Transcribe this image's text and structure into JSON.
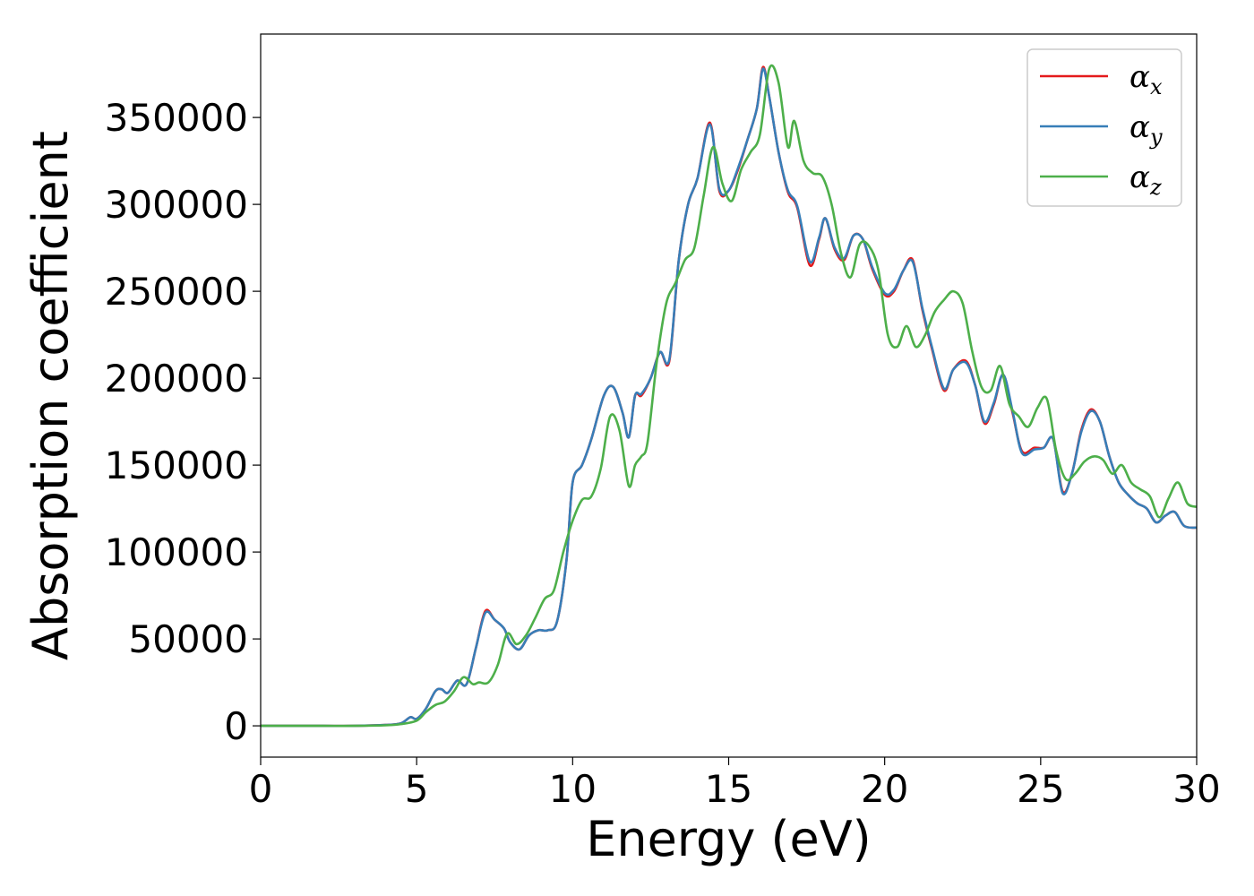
{
  "chart_data": {
    "type": "line",
    "xlabel": "Energy (eV)",
    "ylabel": "Absorption coefficient",
    "xlim": [
      0,
      30
    ],
    "ylim": [
      -18000,
      398000
    ],
    "xticks": [
      0,
      5,
      10,
      15,
      20,
      25,
      30
    ],
    "yticks": [
      0,
      50000,
      100000,
      150000,
      200000,
      250000,
      300000,
      350000
    ],
    "grid": false,
    "legend_position": "top-right",
    "series": [
      {
        "name": "αx",
        "label_base": "α",
        "label_sub": "x",
        "color": "#e41a1c",
        "x": [
          0,
          1,
          2,
          3,
          4,
          4.5,
          4.8,
          5.0,
          5.3,
          5.6,
          5.8,
          6.0,
          6.3,
          6.6,
          6.9,
          7.2,
          7.5,
          7.8,
          8.0,
          8.3,
          8.6,
          8.9,
          9.2,
          9.5,
          9.8,
          10.0,
          10.3,
          10.6,
          11.0,
          11.3,
          11.6,
          11.8,
          12.0,
          12.2,
          12.5,
          12.8,
          13.1,
          13.4,
          13.7,
          14.0,
          14.4,
          14.7,
          15.0,
          15.3,
          15.6,
          15.9,
          16.1,
          16.3,
          16.6,
          16.9,
          17.2,
          17.6,
          17.9,
          18.1,
          18.4,
          18.7,
          19.0,
          19.3,
          19.6,
          20.0,
          20.3,
          20.6,
          20.9,
          21.2,
          21.5,
          21.9,
          22.2,
          22.6,
          22.9,
          23.2,
          23.5,
          23.8,
          24.1,
          24.4,
          24.8,
          25.1,
          25.4,
          25.7,
          26.0,
          26.3,
          26.6,
          26.9,
          27.2,
          27.5,
          27.8,
          28.1,
          28.4,
          28.7,
          29.0,
          29.3,
          29.6,
          30.0
        ],
        "y": [
          0,
          0,
          0,
          0,
          500,
          1500,
          5000,
          4000,
          10000,
          20000,
          21000,
          19000,
          26000,
          24000,
          45000,
          66000,
          61000,
          56000,
          48000,
          44000,
          52000,
          55000,
          55000,
          60000,
          95000,
          140000,
          150000,
          165000,
          190000,
          195000,
          180000,
          166000,
          190000,
          190000,
          200000,
          215000,
          210000,
          268000,
          300000,
          315000,
          347000,
          308000,
          308000,
          320000,
          337000,
          355000,
          379000,
          362000,
          330000,
          307000,
          298000,
          265000,
          280000,
          292000,
          274000,
          268000,
          282000,
          280000,
          263000,
          248000,
          250000,
          262000,
          268000,
          240000,
          218000,
          193000,
          205000,
          210000,
          196000,
          174000,
          185000,
          202000,
          180000,
          158000,
          160000,
          160000,
          165000,
          135000,
          145000,
          170000,
          182000,
          175000,
          155000,
          140000,
          133000,
          128000,
          125000,
          117000,
          121000,
          123000,
          115000,
          114000
        ]
      },
      {
        "name": "αy",
        "label_base": "α",
        "label_sub": "y",
        "color": "#377eb8",
        "x": [
          0,
          1,
          2,
          3,
          4,
          4.5,
          4.8,
          5.0,
          5.3,
          5.6,
          5.8,
          6.0,
          6.3,
          6.6,
          6.9,
          7.2,
          7.5,
          7.8,
          8.0,
          8.3,
          8.6,
          8.9,
          9.2,
          9.5,
          9.8,
          10.0,
          10.3,
          10.6,
          11.0,
          11.3,
          11.6,
          11.8,
          12.0,
          12.2,
          12.5,
          12.8,
          13.1,
          13.4,
          13.7,
          14.0,
          14.4,
          14.7,
          15.0,
          15.3,
          15.6,
          15.9,
          16.1,
          16.3,
          16.6,
          16.9,
          17.2,
          17.6,
          17.9,
          18.1,
          18.4,
          18.7,
          19.0,
          19.3,
          19.6,
          20.0,
          20.3,
          20.6,
          20.9,
          21.2,
          21.5,
          21.9,
          22.2,
          22.6,
          22.9,
          23.2,
          23.5,
          23.8,
          24.1,
          24.4,
          24.8,
          25.1,
          25.4,
          25.7,
          26.0,
          26.3,
          26.6,
          26.9,
          27.2,
          27.5,
          27.8,
          28.1,
          28.4,
          28.7,
          29.0,
          29.3,
          29.6,
          30.0
        ],
        "y": [
          0,
          0,
          0,
          0,
          500,
          1500,
          5000,
          4000,
          10000,
          20000,
          21000,
          19000,
          26000,
          24000,
          45000,
          65000,
          61000,
          56000,
          48000,
          44000,
          52000,
          55000,
          55000,
          60000,
          95000,
          140000,
          150000,
          165000,
          190000,
          195000,
          180000,
          166000,
          190000,
          191000,
          200000,
          215000,
          211000,
          268000,
          300000,
          315000,
          346000,
          309000,
          308000,
          321000,
          337000,
          355000,
          378000,
          362000,
          330000,
          308000,
          299000,
          267000,
          281000,
          292000,
          275000,
          269000,
          282000,
          280000,
          264000,
          249000,
          251000,
          262000,
          267000,
          241000,
          219000,
          194000,
          205000,
          209000,
          196000,
          175000,
          186000,
          202000,
          181000,
          157000,
          159000,
          160000,
          165000,
          134000,
          145000,
          169000,
          181000,
          175000,
          155000,
          140000,
          133000,
          128000,
          125000,
          117000,
          121000,
          123000,
          115000,
          114000
        ]
      },
      {
        "name": "αz",
        "label_base": "α",
        "label_sub": "z",
        "color": "#4daf4a",
        "x": [
          0,
          1,
          2,
          3,
          4,
          4.5,
          5.0,
          5.3,
          5.6,
          5.9,
          6.2,
          6.5,
          6.8,
          7.0,
          7.3,
          7.6,
          7.9,
          8.2,
          8.5,
          8.8,
          9.1,
          9.4,
          9.7,
          10.0,
          10.3,
          10.6,
          10.9,
          11.2,
          11.5,
          11.8,
          12.0,
          12.2,
          12.4,
          12.7,
          13.0,
          13.3,
          13.6,
          13.9,
          14.2,
          14.5,
          14.8,
          15.1,
          15.4,
          15.7,
          16.0,
          16.3,
          16.6,
          16.9,
          17.1,
          17.4,
          17.7,
          18.0,
          18.3,
          18.6,
          18.9,
          19.2,
          19.5,
          19.8,
          20.1,
          20.4,
          20.7,
          21.0,
          21.3,
          21.6,
          21.9,
          22.2,
          22.5,
          22.8,
          23.1,
          23.4,
          23.7,
          24.0,
          24.3,
          24.6,
          24.9,
          25.2,
          25.5,
          25.8,
          26.1,
          26.4,
          26.7,
          27.0,
          27.3,
          27.6,
          27.9,
          28.2,
          28.5,
          28.8,
          29.1,
          29.4,
          29.7,
          30.0
        ],
        "y": [
          0,
          0,
          0,
          0,
          300,
          1000,
          3000,
          8000,
          12000,
          14000,
          20000,
          28000,
          24000,
          25000,
          25000,
          35000,
          53000,
          47000,
          52000,
          62000,
          73000,
          78000,
          100000,
          118000,
          130000,
          132000,
          148000,
          178000,
          170000,
          138000,
          150000,
          155000,
          163000,
          210000,
          243000,
          255000,
          268000,
          275000,
          305000,
          333000,
          312000,
          302000,
          320000,
          330000,
          340000,
          378000,
          370000,
          333000,
          348000,
          325000,
          318000,
          316000,
          300000,
          272000,
          258000,
          277000,
          276000,
          262000,
          225000,
          218000,
          230000,
          218000,
          225000,
          238000,
          245000,
          250000,
          243000,
          216000,
          195000,
          193000,
          207000,
          185000,
          178000,
          172000,
          183000,
          188000,
          158000,
          142000,
          145000,
          152000,
          155000,
          153000,
          145000,
          150000,
          140000,
          136000,
          132000,
          120000,
          131000,
          140000,
          128000,
          126000
        ]
      }
    ]
  }
}
